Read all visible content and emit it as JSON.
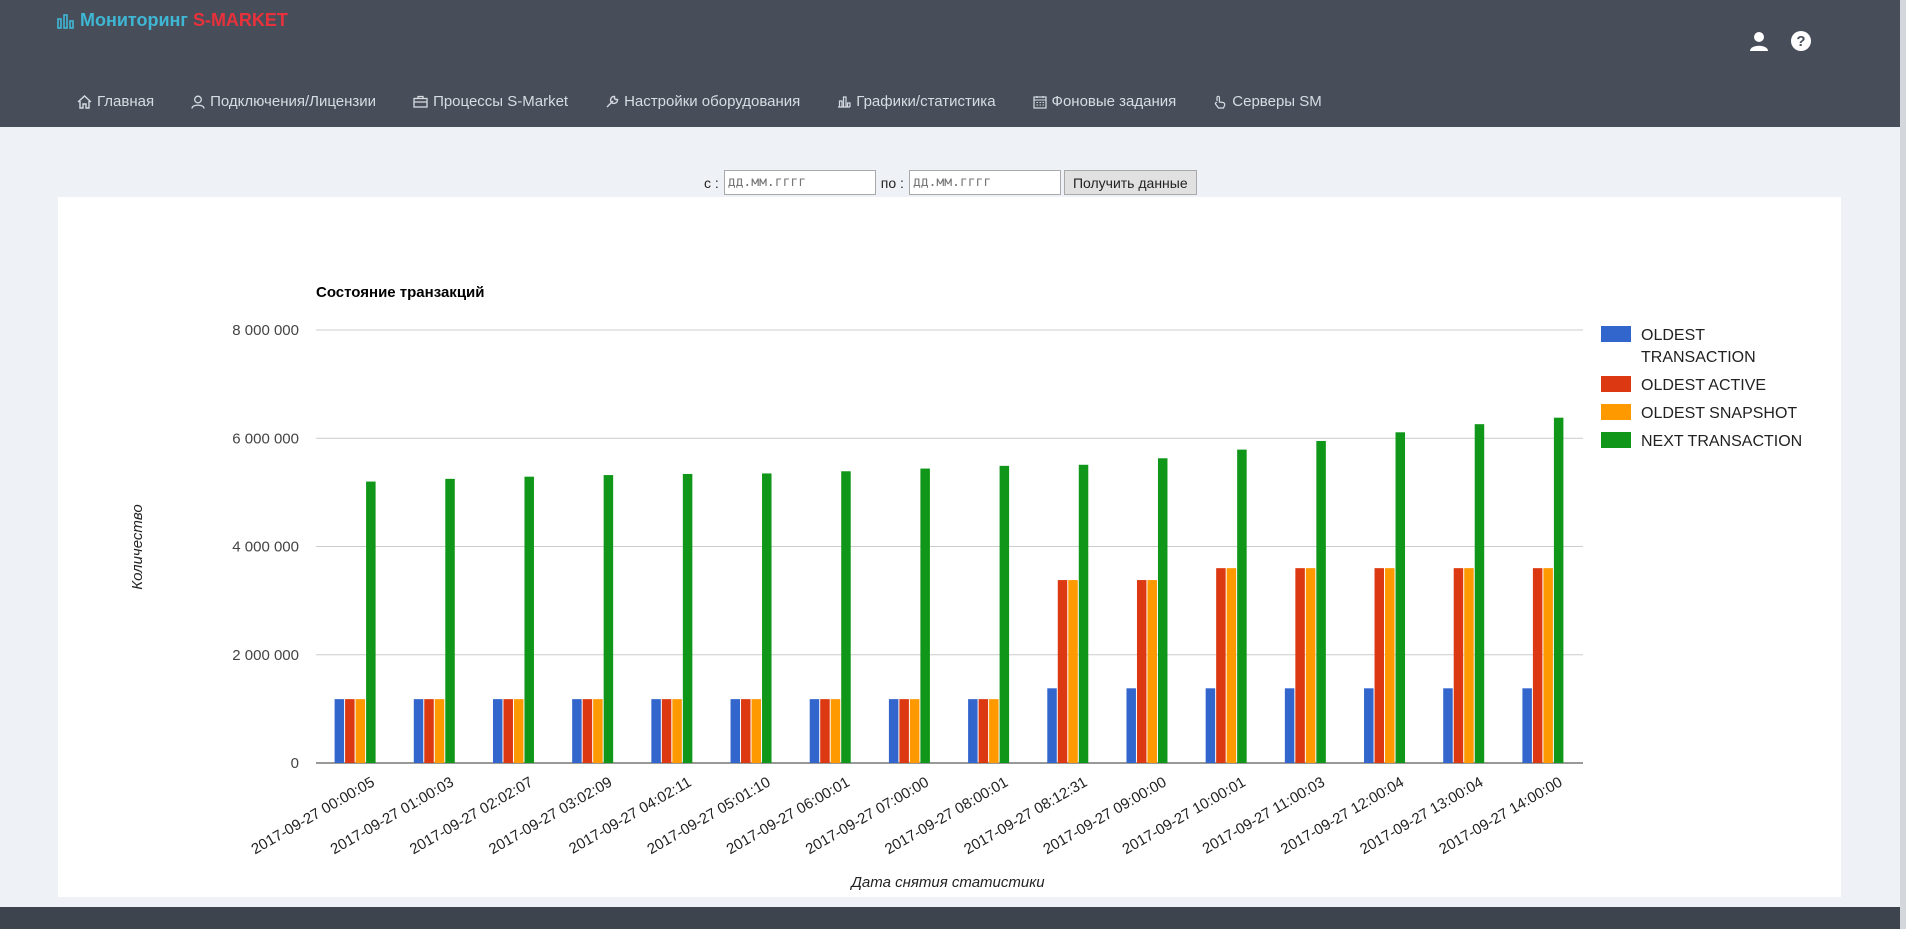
{
  "app": {
    "brand_prefix": "Мониторинг",
    "brand_accent": "S-MARKET"
  },
  "top_icons": [
    "user-icon",
    "help-icon"
  ],
  "menu": [
    {
      "label": "Главная",
      "icon": "home-icon"
    },
    {
      "label": "Подключения/Лицензии",
      "icon": "user-outline-icon"
    },
    {
      "label": "Процессы S-Market",
      "icon": "briefcase-icon"
    },
    {
      "label": "Настройки оборудования",
      "icon": "wrench-icon"
    },
    {
      "label": "Графики/статистика",
      "icon": "bar-chart-icon"
    },
    {
      "label": "Фоновые задания",
      "icon": "calendar-icon"
    },
    {
      "label": "Серверы SM",
      "icon": "pointer-icon"
    }
  ],
  "filter": {
    "from_label": "с :",
    "from_placeholder": "дд.мм.гггг",
    "to_label": "по :",
    "to_placeholder": "дд.мм.гггг",
    "submit_label": "Получить данные"
  },
  "chart_data": {
    "type": "bar",
    "title": "Состояние транзакций",
    "xlabel": "Дата снятия статистики",
    "ylabel": "Количество",
    "ylim": [
      0,
      8000000
    ],
    "yticks": [
      0,
      2000000,
      4000000,
      6000000,
      8000000
    ],
    "ytick_labels": [
      "0",
      "2 000 000",
      "4 000 000",
      "6 000 000",
      "8 000 000"
    ],
    "grid": true,
    "legend_position": "right",
    "categories": [
      "2017-09-27 00:00:05",
      "2017-09-27 01:00:03",
      "2017-09-27 02:02:07",
      "2017-09-27 03:02:09",
      "2017-09-27 04:02:11",
      "2017-09-27 05:01:10",
      "2017-09-27 06:00:01",
      "2017-09-27 07:00:00",
      "2017-09-27 08:00:01",
      "2017-09-27 08:12:31",
      "2017-09-27 09:00:00",
      "2017-09-27 10:00:01",
      "2017-09-27 11:00:03",
      "2017-09-27 12:00:04",
      "2017-09-27 13:00:04",
      "2017-09-27 14:00:00"
    ],
    "series": [
      {
        "name": "OLDEST TRANSACTION",
        "color": "#3366cc",
        "values": [
          1180000,
          1180000,
          1180000,
          1180000,
          1180000,
          1180000,
          1180000,
          1180000,
          1180000,
          1380000,
          1380000,
          1380000,
          1380000,
          1380000,
          1380000,
          1380000
        ]
      },
      {
        "name": "OLDEST ACTIVE",
        "color": "#dc3912",
        "values": [
          1180000,
          1180000,
          1180000,
          1180000,
          1180000,
          1180000,
          1180000,
          1180000,
          1180000,
          3380000,
          3380000,
          3600000,
          3600000,
          3600000,
          3600000,
          3600000
        ]
      },
      {
        "name": "OLDEST SNAPSHOT",
        "color": "#ff9900",
        "values": [
          1180000,
          1180000,
          1180000,
          1180000,
          1180000,
          1180000,
          1180000,
          1180000,
          1180000,
          3380000,
          3380000,
          3600000,
          3600000,
          3600000,
          3600000,
          3600000
        ]
      },
      {
        "name": "NEXT TRANSACTION",
        "color": "#109618",
        "values": [
          5200000,
          5250000,
          5290000,
          5320000,
          5340000,
          5350000,
          5390000,
          5440000,
          5490000,
          5510000,
          5630000,
          5790000,
          5950000,
          6110000,
          6260000,
          6380000
        ]
      }
    ]
  }
}
